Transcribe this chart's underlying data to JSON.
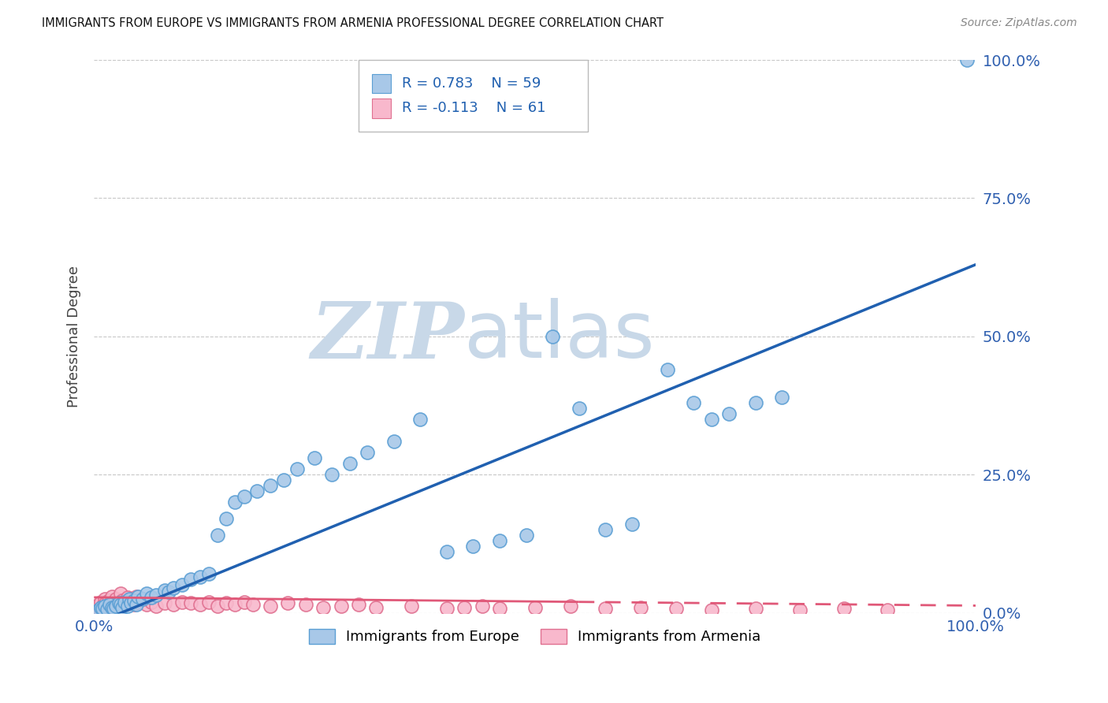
{
  "title": "IMMIGRANTS FROM EUROPE VS IMMIGRANTS FROM ARMENIA PROFESSIONAL DEGREE CORRELATION CHART",
  "source": "Source: ZipAtlas.com",
  "ylabel": "Professional Degree",
  "ytick_labels": [
    "0.0%",
    "25.0%",
    "50.0%",
    "75.0%",
    "100.0%"
  ],
  "ytick_vals": [
    0.0,
    0.25,
    0.5,
    0.75,
    1.0
  ],
  "xtick_left_label": "0.0%",
  "xtick_right_label": "100.0%",
  "xlim": [
    0.0,
    1.0
  ],
  "ylim": [
    0.0,
    1.0
  ],
  "europe_R": 0.783,
  "europe_N": 59,
  "armenia_R": -0.113,
  "armenia_N": 61,
  "europe_scatter_color": "#a8c8e8",
  "europe_edge_color": "#5b9fd4",
  "armenia_scatter_color": "#f8b8cc",
  "armenia_edge_color": "#e07090",
  "trendline_europe_color": "#2060b0",
  "trendline_armenia_color": "#e05878",
  "watermark_text": "ZIPatlas",
  "watermark_color": "#c8d8e8",
  "legend_label_europe": "Immigrants from Europe",
  "legend_label_armenia": "Immigrants from Armenia",
  "eu_x": [
    0.005,
    0.008,
    0.01,
    0.012,
    0.015,
    0.018,
    0.02,
    0.022,
    0.025,
    0.028,
    0.03,
    0.032,
    0.035,
    0.038,
    0.04,
    0.042,
    0.045,
    0.048,
    0.05,
    0.055,
    0.06,
    0.065,
    0.07,
    0.08,
    0.085,
    0.09,
    0.1,
    0.11,
    0.12,
    0.13,
    0.14,
    0.15,
    0.16,
    0.17,
    0.185,
    0.2,
    0.215,
    0.23,
    0.25,
    0.27,
    0.29,
    0.31,
    0.34,
    0.37,
    0.4,
    0.43,
    0.46,
    0.49,
    0.52,
    0.55,
    0.58,
    0.61,
    0.65,
    0.68,
    0.7,
    0.72,
    0.75,
    0.78,
    0.99
  ],
  "eu_y": [
    0.005,
    0.01,
    0.008,
    0.012,
    0.007,
    0.015,
    0.01,
    0.008,
    0.012,
    0.018,
    0.015,
    0.01,
    0.02,
    0.012,
    0.025,
    0.018,
    0.022,
    0.015,
    0.03,
    0.025,
    0.035,
    0.028,
    0.032,
    0.04,
    0.038,
    0.045,
    0.05,
    0.06,
    0.065,
    0.07,
    0.14,
    0.17,
    0.2,
    0.21,
    0.22,
    0.23,
    0.24,
    0.26,
    0.28,
    0.25,
    0.27,
    0.29,
    0.31,
    0.35,
    0.11,
    0.12,
    0.13,
    0.14,
    0.5,
    0.37,
    0.15,
    0.16,
    0.44,
    0.38,
    0.35,
    0.36,
    0.38,
    0.39,
    1.0
  ],
  "ar_x": [
    0.003,
    0.005,
    0.007,
    0.008,
    0.01,
    0.012,
    0.013,
    0.015,
    0.017,
    0.018,
    0.02,
    0.022,
    0.024,
    0.025,
    0.027,
    0.03,
    0.032,
    0.035,
    0.038,
    0.04,
    0.042,
    0.045,
    0.048,
    0.05,
    0.055,
    0.06,
    0.065,
    0.07,
    0.08,
    0.09,
    0.1,
    0.11,
    0.12,
    0.13,
    0.14,
    0.15,
    0.16,
    0.17,
    0.18,
    0.2,
    0.22,
    0.24,
    0.26,
    0.28,
    0.3,
    0.32,
    0.36,
    0.4,
    0.42,
    0.44,
    0.46,
    0.5,
    0.54,
    0.58,
    0.62,
    0.66,
    0.7,
    0.75,
    0.8,
    0.85,
    0.9
  ],
  "ar_y": [
    0.01,
    0.015,
    0.008,
    0.02,
    0.012,
    0.025,
    0.018,
    0.01,
    0.022,
    0.015,
    0.03,
    0.02,
    0.012,
    0.025,
    0.018,
    0.035,
    0.022,
    0.015,
    0.028,
    0.02,
    0.025,
    0.015,
    0.03,
    0.02,
    0.025,
    0.015,
    0.02,
    0.012,
    0.018,
    0.015,
    0.02,
    0.018,
    0.015,
    0.02,
    0.012,
    0.018,
    0.015,
    0.02,
    0.015,
    0.012,
    0.018,
    0.015,
    0.01,
    0.012,
    0.015,
    0.01,
    0.012,
    0.008,
    0.01,
    0.012,
    0.008,
    0.01,
    0.012,
    0.008,
    0.01,
    0.008,
    0.005,
    0.008,
    0.005,
    0.008,
    0.005
  ],
  "eu_trendline": [
    0.0,
    1.0,
    -0.02,
    0.65
  ],
  "ar_trendline_solid": [
    0.0,
    0.55,
    0.028,
    -0.015
  ],
  "ar_trendline_dashed": [
    0.55,
    1.0,
    0.028,
    -0.015
  ]
}
